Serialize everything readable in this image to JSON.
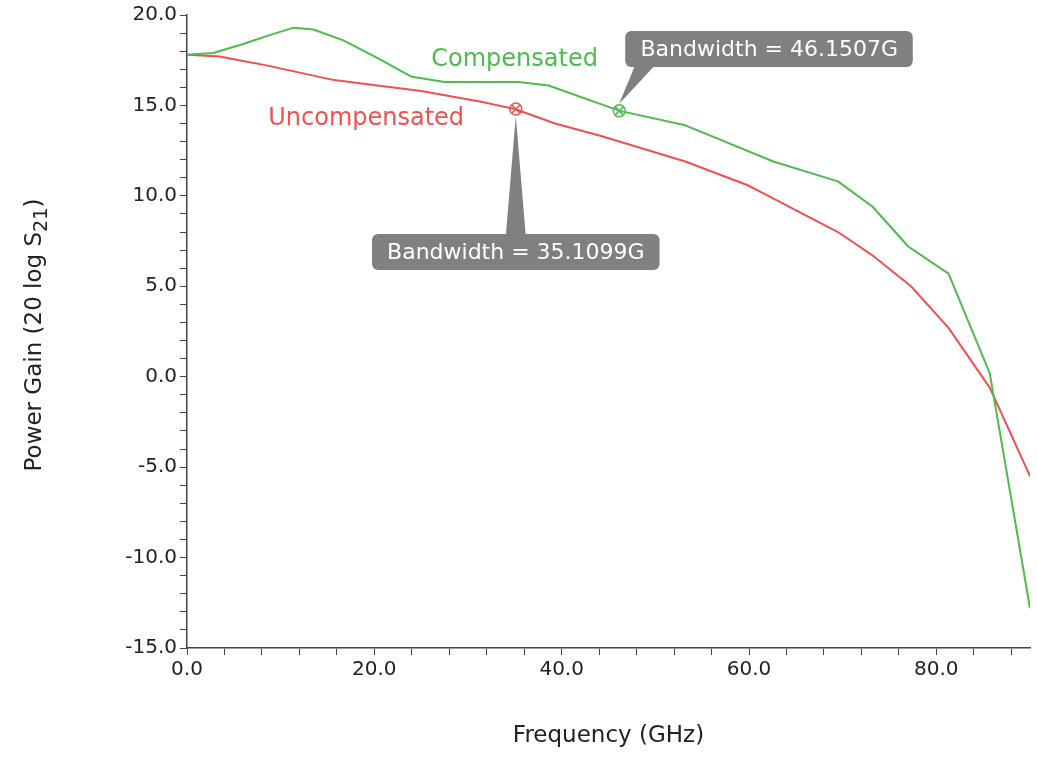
{
  "chart_data": {
    "type": "line",
    "xlabel": "Frequency (GHz)",
    "ylabel": "Power Gain (20 log S$_{21}$)",
    "xlim": [
      0,
      90
    ],
    "ylim": [
      -15,
      20
    ],
    "xticks": [
      {
        "value": 0,
        "label": "0.0"
      },
      {
        "value": 4,
        "label": null
      },
      {
        "value": 8,
        "label": null
      },
      {
        "value": 12,
        "label": null
      },
      {
        "value": 16,
        "label": null
      },
      {
        "value": 20,
        "label": "20.0"
      },
      {
        "value": 24,
        "label": null
      },
      {
        "value": 28,
        "label": null
      },
      {
        "value": 32,
        "label": null
      },
      {
        "value": 36,
        "label": null
      },
      {
        "value": 40,
        "label": "40.0"
      },
      {
        "value": 44,
        "label": null
      },
      {
        "value": 48,
        "label": null
      },
      {
        "value": 52,
        "label": null
      },
      {
        "value": 56,
        "label": null
      },
      {
        "value": 60,
        "label": "60.0"
      },
      {
        "value": 64,
        "label": null
      },
      {
        "value": 68,
        "label": null
      },
      {
        "value": 72,
        "label": null
      },
      {
        "value": 76,
        "label": null
      },
      {
        "value": 80,
        "label": "80.0"
      },
      {
        "value": 84,
        "label": null
      },
      {
        "value": 88,
        "label": null
      }
    ],
    "yticks": [
      {
        "value": -15,
        "label": "-15.0"
      },
      {
        "value": -14,
        "label": null
      },
      {
        "value": -13,
        "label": null
      },
      {
        "value": -12,
        "label": null
      },
      {
        "value": -11,
        "label": null
      },
      {
        "value": -10,
        "label": "-10.0"
      },
      {
        "value": -9,
        "label": null
      },
      {
        "value": -8,
        "label": null
      },
      {
        "value": -7,
        "label": null
      },
      {
        "value": -6,
        "label": null
      },
      {
        "value": -5,
        "label": "-5.0"
      },
      {
        "value": -4,
        "label": null
      },
      {
        "value": -3,
        "label": null
      },
      {
        "value": -2,
        "label": null
      },
      {
        "value": -1,
        "label": null
      },
      {
        "value": 0,
        "label": "0.0"
      },
      {
        "value": 1,
        "label": null
      },
      {
        "value": 2,
        "label": null
      },
      {
        "value": 3,
        "label": null
      },
      {
        "value": 4,
        "label": null
      },
      {
        "value": 5,
        "label": "5.0"
      },
      {
        "value": 6,
        "label": null
      },
      {
        "value": 7,
        "label": null
      },
      {
        "value": 8,
        "label": null
      },
      {
        "value": 9,
        "label": null
      },
      {
        "value": 10,
        "label": "10.0"
      },
      {
        "value": 11,
        "label": null
      },
      {
        "value": 12,
        "label": null
      },
      {
        "value": 13,
        "label": null
      },
      {
        "value": 14,
        "label": null
      },
      {
        "value": 15,
        "label": "15.0"
      },
      {
        "value": 16,
        "label": null
      },
      {
        "value": 17,
        "label": null
      },
      {
        "value": 18,
        "label": null
      },
      {
        "value": 19,
        "label": null
      },
      {
        "value": 20,
        "label": "20.0"
      }
    ],
    "legend": false,
    "series": [
      {
        "name": "Compensated",
        "color": "#4dbb4d",
        "x": [
          0,
          2.8,
          6,
          8.9,
          11.4,
          13.5,
          16.7,
          20.4,
          23.9,
          27.5,
          32.2,
          35.4,
          38.6,
          46.2,
          53.2,
          62.6,
          69.5,
          73.2,
          77,
          81.3,
          85.7,
          90
        ],
        "values": [
          17.8,
          17.9,
          18.4,
          18.9,
          19.3,
          19.2,
          18.6,
          17.6,
          16.6,
          16.3,
          16.3,
          16.3,
          16.1,
          14.7,
          13.9,
          11.9,
          10.8,
          9.4,
          7.2,
          5.7,
          0.2,
          -12.8
        ]
      },
      {
        "name": "Uncompensated",
        "color": "#f05050",
        "x": [
          0,
          3.5,
          8.6,
          15.7,
          25,
          31.4,
          35,
          39.3,
          44.3,
          53.2,
          59.8,
          69.5,
          73.2,
          77.3,
          81.3,
          85.7,
          90
        ],
        "values": [
          17.8,
          17.7,
          17.2,
          16.4,
          15.8,
          15.2,
          14.8,
          14,
          13.3,
          11.9,
          10.6,
          8,
          6.7,
          5,
          2.7,
          -0.6,
          -5.5
        ]
      }
    ],
    "annotations": [
      {
        "text": "Bandwidth = 35.1099G",
        "x": 35.1099,
        "y": 14.8
      },
      {
        "text": "Bandwidth = 46.1507G",
        "x": 46.1507,
        "y": 14.7
      }
    ]
  }
}
